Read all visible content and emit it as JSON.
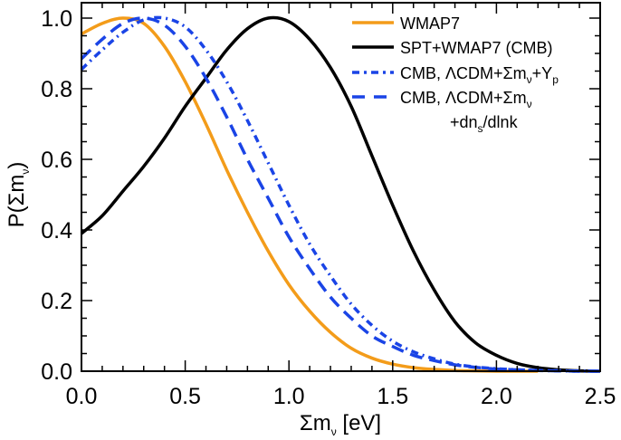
{
  "chart_data": {
    "type": "line",
    "title": "",
    "xlabel": "Σm_ν [eV]",
    "xlabel_parts": {
      "main": "Σm",
      "sub": "ν",
      "tail": " [eV]"
    },
    "ylabel": "P(Σm_ν)",
    "ylabel_parts": {
      "pre": "P(Σm",
      "sub": "ν",
      "post": ")"
    },
    "xlim": [
      0.0,
      2.5
    ],
    "ylim": [
      0.0,
      1.0
    ],
    "xticks": [
      "0.0",
      "0.5",
      "1.0",
      "1.5",
      "2.0",
      "2.5"
    ],
    "xtick_values": [
      0.0,
      0.5,
      1.0,
      1.5,
      2.0,
      2.5
    ],
    "xminor_step": 0.1,
    "yticks": [
      "0.0",
      "0.2",
      "0.4",
      "0.6",
      "0.8",
      "1.0"
    ],
    "ytick_values": [
      0.0,
      0.2,
      0.4,
      0.6,
      0.8,
      1.0
    ],
    "yminor_step": 0.05,
    "grid": false,
    "legend_position": "top-right",
    "series": [
      {
        "name": "WMAP7",
        "legend": [
          {
            "text": "WMAP7"
          }
        ],
        "color": "#f39c1a",
        "style": "solid",
        "x": [
          0.0,
          0.1,
          0.2,
          0.3,
          0.4,
          0.5,
          0.6,
          0.7,
          0.8,
          0.9,
          1.0,
          1.1,
          1.2,
          1.3,
          1.4,
          1.5,
          1.6,
          1.7,
          1.8,
          1.9,
          2.0,
          2.1,
          2.2
        ],
        "y": [
          0.955,
          0.985,
          1.0,
          0.985,
          0.92,
          0.82,
          0.7,
          0.57,
          0.45,
          0.34,
          0.245,
          0.17,
          0.11,
          0.065,
          0.037,
          0.02,
          0.01,
          0.005,
          0.002,
          0.001,
          0.0,
          0.0,
          0.0
        ]
      },
      {
        "name": "SPT+WMAP7 (CMB)",
        "legend": [
          {
            "text": "SPT+WMAP7 (CMB)"
          }
        ],
        "color": "#000000",
        "style": "solid",
        "x": [
          0.0,
          0.1,
          0.2,
          0.3,
          0.4,
          0.5,
          0.6,
          0.7,
          0.8,
          0.9,
          1.0,
          1.1,
          1.2,
          1.3,
          1.4,
          1.5,
          1.6,
          1.7,
          1.8,
          1.9,
          2.0,
          2.1,
          2.2,
          2.3,
          2.4,
          2.5
        ],
        "y": [
          0.39,
          0.44,
          0.51,
          0.58,
          0.66,
          0.75,
          0.83,
          0.91,
          0.97,
          1.0,
          0.99,
          0.94,
          0.86,
          0.75,
          0.61,
          0.47,
          0.34,
          0.23,
          0.14,
          0.08,
          0.045,
          0.022,
          0.01,
          0.004,
          0.001,
          0.0
        ]
      },
      {
        "name": "CMB, ΛCDM+Σm_ν+Y_p",
        "legend": [
          {
            "text": "CMB, ΛCDM+Σm",
            "sub": "ν",
            "tail": "+Y",
            "sub2": "p"
          }
        ],
        "color": "#1a44e6",
        "style": "dashdot",
        "x": [
          0.0,
          0.1,
          0.2,
          0.3,
          0.4,
          0.5,
          0.6,
          0.7,
          0.8,
          0.9,
          1.0,
          1.1,
          1.2,
          1.3,
          1.4,
          1.5,
          1.6,
          1.7,
          1.8,
          1.9,
          2.0,
          2.1,
          2.2,
          2.3,
          2.4,
          2.5
        ],
        "y": [
          0.855,
          0.91,
          0.96,
          0.995,
          1.0,
          0.975,
          0.91,
          0.82,
          0.71,
          0.59,
          0.47,
          0.36,
          0.27,
          0.19,
          0.13,
          0.085,
          0.055,
          0.035,
          0.02,
          0.012,
          0.007,
          0.004,
          0.002,
          0.001,
          0.0,
          0.0
        ]
      },
      {
        "name": "CMB, ΛCDM+Σm_ν+dn_s/dlnk",
        "legend": [
          {
            "text": "CMB, ΛCDM+Σm",
            "sub": "ν"
          },
          {
            "text": "+dn",
            "sub": "s",
            "tail": "/dlnk"
          }
        ],
        "color": "#1a44e6",
        "style": "dashed",
        "x": [
          0.0,
          0.1,
          0.2,
          0.3,
          0.4,
          0.5,
          0.6,
          0.7,
          0.8,
          0.9,
          1.0,
          1.1,
          1.2,
          1.3,
          1.4,
          1.5,
          1.6,
          1.7,
          1.8,
          1.9,
          2.0,
          2.1,
          2.2,
          2.3,
          2.4,
          2.5
        ],
        "y": [
          0.885,
          0.94,
          0.985,
          1.0,
          0.98,
          0.92,
          0.83,
          0.72,
          0.6,
          0.49,
          0.38,
          0.29,
          0.21,
          0.15,
          0.1,
          0.07,
          0.045,
          0.03,
          0.018,
          0.011,
          0.006,
          0.004,
          0.002,
          0.001,
          0.0,
          0.0
        ]
      }
    ]
  }
}
